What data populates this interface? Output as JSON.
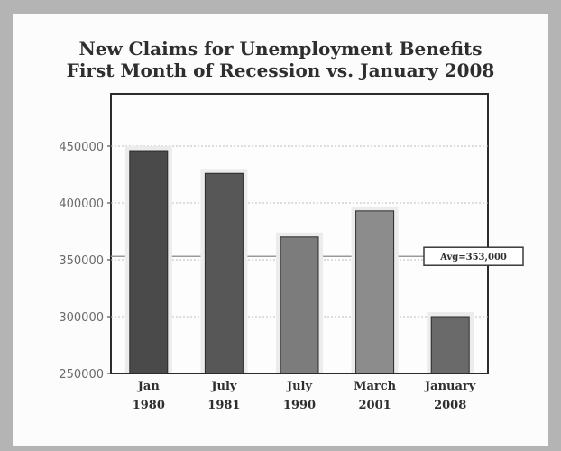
{
  "chart_data": {
    "type": "bar",
    "title": "New Claims for Unemployment Benefits",
    "subtitle": "First Month of Recession vs. January 2008",
    "categories": [
      [
        "Jan",
        "1980"
      ],
      [
        "July",
        "1981"
      ],
      [
        "July",
        "1990"
      ],
      [
        "March",
        "2001"
      ],
      [
        "January",
        "2008"
      ]
    ],
    "values": [
      446000,
      426000,
      370000,
      393000,
      300000
    ],
    "bar_colors": [
      "#4a4a4a",
      "#575757",
      "#7c7c7c",
      "#8c8c8c",
      "#6a6a6a"
    ],
    "ylim": [
      250000,
      500000
    ],
    "yticks": [
      250000,
      300000,
      350000,
      400000,
      450000
    ],
    "ytick_labels": [
      "250000",
      "300000",
      "350000",
      "400000",
      "450000"
    ],
    "grid": true,
    "xlabel": "",
    "ylabel": "",
    "annotation": {
      "text": "Avg=353,000",
      "value": 353000
    }
  }
}
